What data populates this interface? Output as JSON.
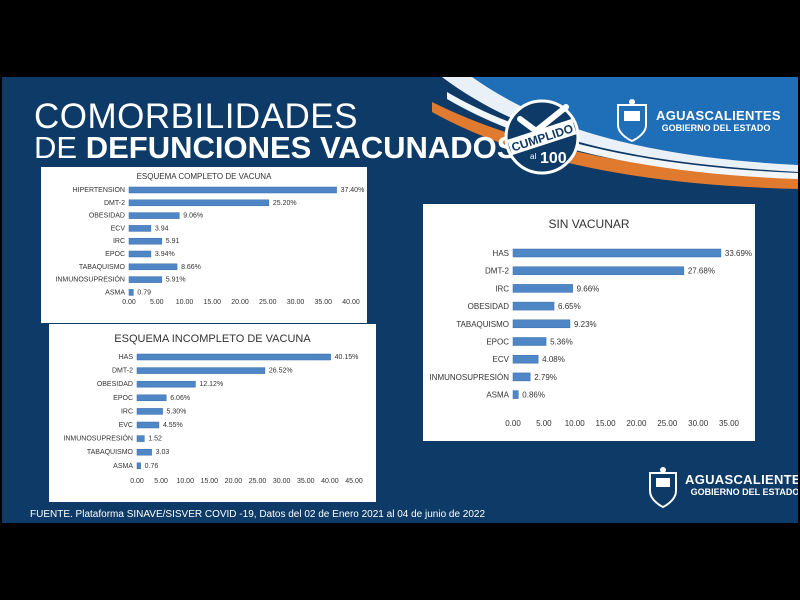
{
  "slide": {
    "title_line1": "COMORBILIDADES",
    "title_line2_prefix": "DE",
    "title_line2_main": "DEFUNCIONES VACUNADOS",
    "badge_text": "CUMPLIDO",
    "badge_number": "100",
    "badge_prefix": "al",
    "brand_name": "AGUASCALIENTES",
    "brand_sub": "GOBIERNO DEL ESTADO",
    "source": "FUENTE. Plataforma SINAVE/SISVER COVID -19, Datos del 02 de Enero 2021 al 04 de junio de 2022",
    "colors": {
      "background": "#0d3a66",
      "bar": "#4f86c6",
      "bar_edge": "#3a6da8",
      "accent": "#e07a2e"
    }
  },
  "chart_data": [
    {
      "type": "bar",
      "orientation": "horizontal",
      "title": "ESQUEMA COMPLETO DE VACUNA",
      "categories": [
        "HIPERTENSION",
        "DMT-2",
        "OBESIDAD",
        "ECV",
        "IRC",
        "EPOC",
        "TABAQUISMO",
        "INMUNOSUPRESIÓN",
        "ASMA"
      ],
      "values": [
        37.4,
        25.2,
        9.06,
        3.94,
        5.91,
        3.94,
        8.66,
        5.91,
        0.79
      ],
      "labels": [
        "37.40%",
        "25.20%",
        "9.06%",
        "3.94",
        "5.91",
        "3.94%",
        "8.66%",
        "5.91%",
        "0.79"
      ],
      "xticks": [
        "0.00",
        "5.00",
        "10.00",
        "15.00",
        "20.00",
        "25.00",
        "30.00",
        "35.00",
        "40.00"
      ],
      "xlim": [
        0,
        40
      ]
    },
    {
      "type": "bar",
      "orientation": "horizontal",
      "title": "ESQUEMA INCOMPLETO DE VACUNA",
      "categories": [
        "HAS",
        "DMT-2",
        "OBESIDAD",
        "EPOC",
        "IRC",
        "EVC",
        "INMUNOSUPRESIÓN",
        "TABAQUISMO",
        "ASMA"
      ],
      "values": [
        40.15,
        26.52,
        12.12,
        6.06,
        5.3,
        4.55,
        1.52,
        3.03,
        0.76
      ],
      "labels": [
        "40.15%",
        "26.52%",
        "12.12%",
        "6.06%",
        "5.30%",
        "4.55%",
        "1.52",
        "3.03",
        "0.76"
      ],
      "xticks": [
        "0.00",
        "5.00",
        "10.00",
        "15.00",
        "20.00",
        "25.00",
        "30.00",
        "35.00",
        "40.00",
        "45.00"
      ],
      "xlim": [
        0,
        45
      ]
    },
    {
      "type": "bar",
      "orientation": "horizontal",
      "title": "SIN VACUNAR",
      "categories": [
        "HAS",
        "DMT-2",
        "IRC",
        "OBESIDAD",
        "TABAQUISMO",
        "EPOC",
        "ECV",
        "INMUNOSUPRESIÓN",
        "ASMA"
      ],
      "values": [
        33.69,
        27.68,
        9.66,
        6.65,
        9.23,
        5.36,
        4.08,
        2.79,
        0.86
      ],
      "labels": [
        "33.69%",
        "27.68%",
        "9.66%",
        "6.65%",
        "9.23%",
        "5.36%",
        "4.08%",
        "2.79%",
        "0.86%"
      ],
      "xticks": [
        "0.00",
        "5.00",
        "10.00",
        "15.00",
        "20.00",
        "25.00",
        "30.00",
        "35.00"
      ],
      "xlim": [
        0,
        35
      ]
    }
  ]
}
